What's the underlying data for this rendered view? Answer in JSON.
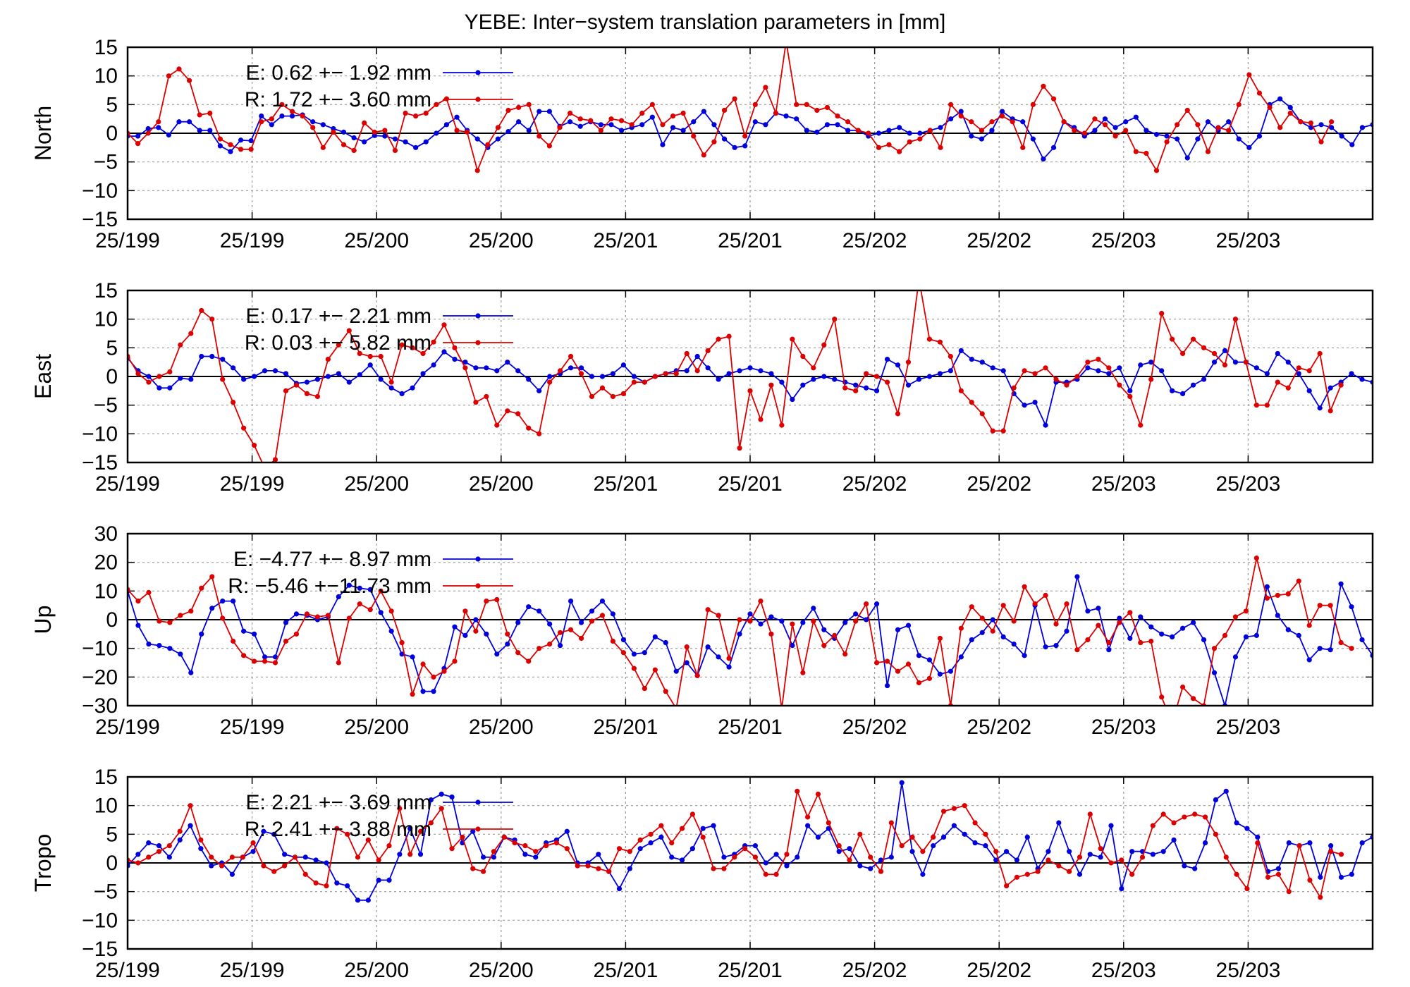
{
  "title": "YEBE: Inter−system translation parameters in [mm]",
  "colors": {
    "E": "#0000dd",
    "R": "#dd0000",
    "grid": "#999999",
    "axis": "#000000"
  },
  "chart_data": [
    {
      "type": "line",
      "ylabel": "North",
      "ylim": [
        -15,
        15
      ],
      "yticks": [
        "15",
        "10",
        "5",
        "0",
        "−5",
        "−10",
        "−15"
      ],
      "xticks": [
        "25/199",
        "25/199",
        "25/200",
        "25/200",
        "25/201",
        "25/201",
        "25/202",
        "25/202",
        "25/203",
        "25/203"
      ],
      "legend_placement": "top-left",
      "series": [
        {
          "name": "E",
          "legend": "E:   0.62 +− 1.92 mm",
          "values": [
            -0.5,
            -0.5,
            0.8,
            1.0,
            -0.3,
            2.0,
            2.0,
            0.5,
            0.5,
            -2.2,
            -3.2,
            -1.2,
            -1.3,
            3.0,
            1.5,
            3.0,
            3.0,
            3.2,
            2.0,
            1.5,
            0.8,
            0.2,
            -0.8,
            -1.5,
            -0.4,
            -0.5,
            -1.0,
            -1.5,
            -2.5,
            -1.5,
            0.0,
            1.5,
            2.8,
            0.5,
            -1.0,
            -2.5,
            -1.0,
            0.3,
            2.0,
            0.5,
            3.8,
            3.8,
            1.2,
            2.0,
            1.2,
            2.0,
            1.5,
            1.5,
            0.5,
            1.0,
            1.5,
            2.8,
            -2.0,
            1.0,
            0.5,
            2.0,
            3.8,
            1.5,
            -1.0,
            -2.5,
            -2.2,
            2.0,
            1.5,
            3.5,
            3.0,
            2.5,
            0.5,
            0.2,
            1.5,
            1.5,
            0.5,
            0.5,
            -0.5,
            0.0,
            0.5,
            1.0,
            0.0,
            0.0,
            0.5,
            1.0,
            2.5,
            3.8,
            -0.5,
            -1.0,
            0.5,
            3.8,
            2.5,
            2.0,
            -1.0,
            -4.5,
            -2.5,
            2.0,
            1.0,
            -0.5,
            0.5,
            2.5,
            1.0,
            2.0,
            2.8,
            0.5,
            -0.2,
            -0.5,
            -1.0,
            -4.3,
            -1.0,
            2.0,
            0.5,
            2.0,
            -1.0,
            -2.5,
            -0.5,
            5.0,
            6.0,
            4.5,
            2.0,
            1.0,
            1.5,
            1.0,
            -0.5,
            -2.0,
            1.0,
            1.5
          ]
        },
        {
          "name": "R",
          "legend": "R:   1.72 +− 3.60 mm",
          "values": [
            0.0,
            -1.8,
            0.0,
            2.0,
            10.0,
            11.2,
            9.2,
            3.2,
            3.5,
            -1.0,
            -2.0,
            -2.8,
            -2.8,
            2.0,
            2.5,
            5.0,
            3.8,
            3.0,
            1.0,
            -2.5,
            0.2,
            -2.0,
            -3.0,
            1.8,
            0.2,
            0.5,
            -3.0,
            3.5,
            3.0,
            3.5,
            5.0,
            6.0,
            0.5,
            0.2,
            -6.5,
            -2.0,
            1.0,
            4.0,
            4.5,
            5.0,
            -0.5,
            -2.2,
            1.0,
            3.5,
            2.5,
            2.2,
            0.5,
            2.5,
            2.2,
            1.5,
            3.5,
            5.0,
            1.5,
            3.0,
            3.5,
            -0.5,
            -3.8,
            -1.5,
            4.0,
            6.0,
            -0.5,
            5.0,
            8.0,
            3.5,
            16.0,
            5.0,
            5.0,
            4.0,
            4.5,
            3.0,
            2.0,
            0.5,
            0.0,
            -2.5,
            -2.0,
            -3.2,
            -1.5,
            -1.0,
            0.5,
            -2.5,
            5.0,
            3.0,
            2.0,
            0.5,
            2.0,
            3.0,
            2.0,
            -2.5,
            5.0,
            8.2,
            6.0,
            2.0,
            0.5,
            0.0,
            2.5,
            1.5,
            -0.5,
            0.5,
            -3.2,
            -3.5,
            -6.5,
            -1.5,
            1.5,
            4.0,
            1.5,
            -3.2,
            1.0,
            0.5,
            5.0,
            10.2,
            7.0,
            4.5,
            1.0,
            3.5,
            2.0,
            1.8,
            -1.5,
            2.0
          ]
        }
      ]
    },
    {
      "type": "line",
      "ylabel": "East",
      "ylim": [
        -15,
        15
      ],
      "yticks": [
        "15",
        "10",
        "5",
        "0",
        "−5",
        "−10",
        "−15"
      ],
      "xticks": [
        "25/199",
        "25/199",
        "25/200",
        "25/200",
        "25/201",
        "25/201",
        "25/202",
        "25/202",
        "25/203",
        "25/203"
      ],
      "legend_placement": "top-left",
      "series": [
        {
          "name": "E",
          "legend": "E:   0.17 +− 2.21 mm",
          "values": [
            3.2,
            1.0,
            0.0,
            -2.0,
            -2.0,
            -0.3,
            -0.5,
            3.5,
            3.5,
            3.0,
            1.5,
            -0.5,
            0.0,
            1.0,
            1.0,
            0.5,
            -1.2,
            -1.0,
            -0.5,
            0.0,
            0.5,
            -1.0,
            0.3,
            2.0,
            -0.5,
            -2.0,
            -3.0,
            -2.0,
            0.5,
            2.0,
            4.3,
            3.0,
            2.5,
            1.5,
            1.5,
            1.0,
            2.5,
            1.0,
            -0.5,
            -2.5,
            0.0,
            0.5,
            1.5,
            1.5,
            0.0,
            0.0,
            0.5,
            2.0,
            0.0,
            -1.0,
            0.0,
            0.5,
            1.0,
            1.0,
            3.5,
            1.5,
            -0.5,
            0.5,
            1.0,
            1.5,
            1.0,
            0.5,
            -1.0,
            -4.0,
            -1.5,
            -0.5,
            0.0,
            -0.5,
            -1.0,
            -1.5,
            -2.0,
            -2.5,
            3.0,
            2.0,
            -1.5,
            -0.5,
            0.0,
            0.5,
            1.0,
            4.5,
            3.0,
            2.5,
            1.5,
            1.0,
            -3.0,
            -5.0,
            -4.5,
            -8.5,
            -1.0,
            -1.0,
            -0.5,
            1.5,
            1.0,
            0.5,
            1.5,
            -2.5,
            2.0,
            2.5,
            1.0,
            -2.5,
            -3.0,
            -1.5,
            -0.5,
            2.5,
            4.5,
            2.5,
            2.5,
            1.5,
            0.5,
            4.0,
            2.5,
            0.5,
            -2.5,
            -5.5,
            -2.0,
            -1.0,
            0.5,
            -0.5,
            -1.0
          ]
        },
        {
          "name": "R",
          "legend": "R:   0.03 +− 5.82 mm",
          "values": [
            3.5,
            0.5,
            -1.0,
            0.0,
            0.8,
            5.5,
            7.5,
            11.5,
            10.0,
            -0.5,
            -4.5,
            -9.0,
            -12.0,
            -16.0,
            -14.5,
            -2.5,
            -1.5,
            -3.0,
            -3.5,
            3.0,
            5.5,
            8.0,
            4.0,
            3.5,
            3.5,
            -1.0,
            5.5,
            5.0,
            4.0,
            6.0,
            9.0,
            5.0,
            1.5,
            -4.5,
            -3.5,
            -8.5,
            -6.0,
            -6.5,
            -9.0,
            -10.0,
            -1.0,
            1.0,
            3.5,
            0.5,
            -3.5,
            -2.0,
            -3.5,
            -3.0,
            -1.0,
            -1.0,
            0.0,
            0.5,
            0.5,
            4.0,
            1.0,
            4.5,
            6.5,
            7.0,
            -12.5,
            -2.5,
            -7.5,
            -1.5,
            -8.5,
            6.5,
            3.5,
            1.5,
            5.5,
            10.0,
            -2.0,
            -2.5,
            0.5,
            0.0,
            -1.0,
            -6.5,
            2.5,
            17.0,
            6.5,
            6.0,
            3.5,
            -2.5,
            -4.5,
            -6.5,
            -9.5,
            -9.5,
            -2.0,
            1.0,
            0.5,
            1.5,
            -0.5,
            -1.5,
            0.0,
            2.5,
            3.0,
            1.5,
            -1.5,
            -3.5,
            -8.5,
            -0.5,
            11.0,
            6.5,
            4.0,
            6.5,
            5.0,
            4.0,
            2.0,
            10.0,
            2.5,
            -5.0,
            -5.0,
            -1.0,
            -2.0,
            1.5,
            1.0,
            4.0,
            -6.0,
            -1.5
          ]
        }
      ]
    },
    {
      "type": "line",
      "ylabel": "Up",
      "ylim": [
        -30,
        30
      ],
      "yticks": [
        "30",
        "20",
        "10",
        "0",
        "−10",
        "−20",
        "−30"
      ],
      "xticks": [
        "25/199",
        "25/199",
        "25/200",
        "25/200",
        "25/201",
        "25/201",
        "25/202",
        "25/202",
        "25/203",
        "25/203"
      ],
      "legend_placement": "top-left",
      "series": [
        {
          "name": "E",
          "legend": "E:  −4.77 +− 8.97 mm",
          "values": [
            10.0,
            -2.0,
            -8.5,
            -9.0,
            -10.0,
            -12.0,
            -18.5,
            -5.0,
            4.0,
            6.5,
            6.5,
            -4.0,
            -5.0,
            -13.0,
            -13.0,
            -1.0,
            2.0,
            1.5,
            0.0,
            1.0,
            8.0,
            12.0,
            11.0,
            10.5,
            2.5,
            -4.0,
            -12.0,
            -13.0,
            -25.0,
            -25.0,
            -17.0,
            -2.5,
            -5.5,
            0.0,
            -5.0,
            -12.0,
            -8.5,
            -1.0,
            4.5,
            3.0,
            -1.5,
            -9.0,
            6.5,
            -1.0,
            3.0,
            6.5,
            2.0,
            -7.0,
            -12.0,
            -11.5,
            -6.0,
            -8.0,
            -18.0,
            -15.0,
            -19.5,
            -9.5,
            -13.0,
            -16.5,
            -5.0,
            2.0,
            -1.5,
            1.0,
            -0.5,
            -9.0,
            -1.0,
            4.0,
            -3.5,
            -6.5,
            -1.0,
            2.0,
            0.0,
            5.5,
            -23.0,
            -3.5,
            -2.0,
            -12.5,
            -14.0,
            -19.0,
            -18.0,
            -13.0,
            -7.0,
            -4.5,
            0.0,
            -6.0,
            -8.5,
            -12.5,
            5.0,
            -9.5,
            -9.0,
            -4.0,
            15.0,
            3.0,
            4.0,
            -10.5,
            0.5,
            -6.5,
            1.0,
            -2.5,
            -5.0,
            -6.0,
            -3.0,
            -1.0,
            -7.0,
            -18.5,
            -30.0,
            -13.0,
            -6.0,
            -5.5,
            11.5,
            1.5,
            -3.5,
            -5.5,
            -14.0,
            -10.0,
            -10.5,
            12.5,
            4.5,
            -7.0,
            -12.5
          ]
        },
        {
          "name": "R",
          "legend": "R: −5.46 +−11.73 mm",
          "values": [
            10.5,
            6.5,
            9.5,
            -0.5,
            -1.0,
            1.5,
            3.0,
            11.0,
            15.0,
            0.5,
            -7.5,
            -12.5,
            -14.5,
            -14.5,
            -15.0,
            -7.5,
            -5.0,
            2.0,
            1.0,
            1.5,
            -15.0,
            0.5,
            5.5,
            3.5,
            10.0,
            3.0,
            -8.0,
            -26.0,
            -15.5,
            -20.0,
            -18.0,
            -14.5,
            3.0,
            -4.0,
            6.5,
            7.0,
            -5.0,
            -11.5,
            -14.5,
            -10.0,
            -8.5,
            -4.5,
            -3.5,
            -6.5,
            -0.5,
            1.5,
            -7.5,
            -11.5,
            -17.0,
            -24.0,
            -17.5,
            -25.0,
            -31.0,
            -9.5,
            -19.5,
            3.5,
            1.5,
            -13.5,
            0.0,
            -0.5,
            6.5,
            -5.0,
            -31.0,
            -1.5,
            -18.5,
            -0.5,
            -9.0,
            -5.5,
            -12.0,
            -0.5,
            5.5,
            -15.0,
            -14.5,
            -18.0,
            -15.5,
            -22.0,
            -20.5,
            -6.5,
            -30.0,
            -3.0,
            4.5,
            0.5,
            -4.0,
            5.0,
            -0.5,
            11.5,
            5.5,
            8.5,
            -1.5,
            5.5,
            -10.5,
            -7.0,
            -2.0,
            -8.0,
            -1.0,
            2.5,
            -8.0,
            -7.5,
            -27.0,
            -36.0,
            -23.5,
            -27.5,
            -30.0,
            -10.0,
            -5.5,
            1.0,
            3.0,
            21.5,
            7.5,
            8.5,
            9.0,
            13.5,
            -2.0,
            5.0,
            5.0,
            -8.0,
            -10.0
          ]
        }
      ]
    },
    {
      "type": "line",
      "ylabel": "Tropo",
      "ylim": [
        -15,
        15
      ],
      "yticks": [
        "15",
        "10",
        "5",
        "0",
        "−5",
        "−10",
        "−15"
      ],
      "xticks": [
        "25/199",
        "25/199",
        "25/200",
        "25/200",
        "25/201",
        "25/201",
        "25/202",
        "25/202",
        "25/203",
        "25/203"
      ],
      "legend_placement": "top-left",
      "series": [
        {
          "name": "E",
          "legend": "E:   2.21 +− 3.69 mm",
          "values": [
            -0.5,
            1.5,
            3.5,
            3.0,
            1.0,
            4.0,
            6.5,
            2.5,
            -0.5,
            0.0,
            -2.0,
            1.0,
            2.0,
            5.5,
            5.0,
            1.5,
            1.0,
            1.0,
            0.5,
            0.0,
            -3.5,
            -4.0,
            -6.5,
            -6.5,
            -3.0,
            -3.0,
            1.5,
            6.0,
            1.5,
            11.0,
            12.0,
            11.5,
            3.5,
            5.5,
            1.0,
            1.0,
            4.5,
            4.0,
            1.5,
            1.0,
            3.5,
            4.0,
            5.5,
            0.0,
            0.0,
            1.5,
            -1.5,
            -4.5,
            -1.0,
            2.5,
            3.5,
            4.5,
            1.0,
            0.5,
            2.5,
            6.0,
            6.5,
            1.0,
            1.5,
            3.0,
            3.0,
            0.0,
            1.5,
            -0.5,
            1.0,
            6.5,
            4.5,
            6.0,
            2.0,
            2.5,
            -0.5,
            -1.0,
            0.5,
            1.0,
            14.0,
            2.0,
            -2.0,
            3.0,
            4.5,
            6.5,
            5.0,
            3.5,
            3.0,
            0.5,
            2.0,
            0.5,
            4.5,
            -1.0,
            2.0,
            7.0,
            2.0,
            -2.0,
            1.5,
            1.0,
            6.5,
            -4.5,
            2.0,
            2.0,
            1.5,
            2.0,
            4.0,
            -0.5,
            -1.0,
            3.5,
            11.0,
            12.5,
            7.0,
            6.0,
            4.5,
            -1.5,
            -1.0,
            3.5,
            3.0,
            3.5,
            -2.5,
            3.0,
            -2.5,
            -2.0,
            3.5,
            4.5
          ]
        },
        {
          "name": "R",
          "legend": "R:   2.41 +− 3.88 mm",
          "values": [
            0.5,
            0.0,
            1.0,
            2.0,
            3.0,
            5.5,
            10.0,
            4.0,
            1.0,
            -0.5,
            1.0,
            1.0,
            3.5,
            -0.5,
            -1.5,
            -0.5,
            1.0,
            -2.0,
            -3.5,
            -4.0,
            6.0,
            5.0,
            1.0,
            4.0,
            0.5,
            3.0,
            9.5,
            1.5,
            5.5,
            7.0,
            9.5,
            2.5,
            4.5,
            -1.0,
            -1.5,
            2.0,
            4.5,
            3.5,
            3.0,
            2.0,
            3.0,
            3.5,
            2.5,
            -0.5,
            -0.5,
            -1.0,
            -1.5,
            2.5,
            2.0,
            4.0,
            5.0,
            6.5,
            3.5,
            6.0,
            8.5,
            4.5,
            -1.0,
            -1.0,
            1.0,
            2.5,
            1.0,
            -2.0,
            -2.0,
            1.5,
            12.5,
            8.0,
            12.0,
            7.0,
            3.0,
            0.5,
            5.0,
            1.0,
            -1.5,
            7.0,
            3.0,
            4.5,
            2.0,
            4.5,
            9.0,
            9.5,
            10.0,
            7.0,
            5.0,
            2.0,
            -4.0,
            -2.5,
            -2.0,
            -1.5,
            0.5,
            -0.5,
            -1.5,
            1.0,
            8.5,
            2.5,
            0.0,
            0.5,
            -2.0,
            1.0,
            6.5,
            8.5,
            7.0,
            8.0,
            8.5,
            8.0,
            5.0,
            1.0,
            -2.0,
            -4.5,
            3.5,
            -2.5,
            -2.0,
            -5.0,
            3.0,
            -3.0,
            -6.0,
            2.0,
            1.5
          ]
        }
      ]
    }
  ]
}
